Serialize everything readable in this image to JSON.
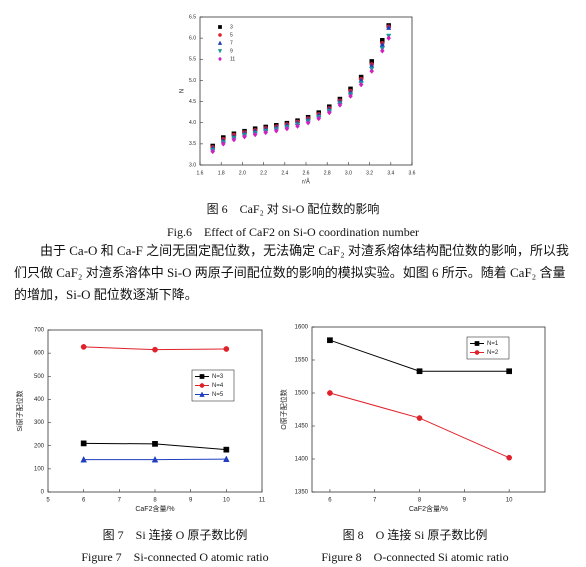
{
  "chart_data": [
    {
      "type": "scatter",
      "xlabel": "r/Å",
      "ylabel": "N",
      "caption": "图 6　CaF₂ 对 Si-O 配位数的影响",
      "caption_en": "Fig.6　Effect of CaF2 on Si-O coordination number",
      "x": [
        1.72,
        1.82,
        1.92,
        2.02,
        2.12,
        2.22,
        2.32,
        2.42,
        2.52,
        2.62,
        2.72,
        2.82,
        2.92,
        3.02,
        3.12,
        3.22,
        3.32,
        3.38
      ],
      "xlim": [
        1.6,
        3.6
      ],
      "ylim": [
        3.0,
        6.5
      ],
      "xticks": [
        1.6,
        1.8,
        {
          "value": 2,
          "label": "2.0"
        },
        2.2,
        2.4,
        2.6,
        2.8,
        {
          "value": 3,
          "label": "3.0"
        },
        3.2,
        3.4,
        3.6
      ],
      "yticks": [
        {
          "value": 3,
          "label": "3.0"
        },
        3.5,
        {
          "value": 4,
          "label": "4.0"
        },
        4.5,
        {
          "value": 5,
          "label": "5.0"
        },
        5.5,
        {
          "value": 6,
          "label": "6.0"
        },
        6.5
      ],
      "legend": "top-left",
      "series": [
        {
          "name": "3",
          "color": "#000000",
          "marker": "square",
          "values": [
            3.45,
            3.65,
            3.74,
            3.8,
            3.86,
            3.9,
            3.94,
            3.99,
            4.05,
            4.13,
            4.24,
            4.38,
            4.56,
            4.8,
            5.08,
            5.45,
            5.95,
            6.3
          ]
        },
        {
          "name": "5",
          "color": "#e0202a",
          "marker": "circle",
          "values": [
            3.42,
            3.61,
            3.71,
            3.77,
            3.82,
            3.87,
            3.91,
            3.96,
            4.02,
            4.1,
            4.2,
            4.34,
            4.52,
            4.75,
            5.03,
            5.38,
            5.88,
            6.27
          ]
        },
        {
          "name": "7",
          "color": "#1f3fc0",
          "marker": "triangle",
          "values": [
            3.4,
            3.58,
            3.68,
            3.75,
            3.8,
            3.85,
            3.89,
            3.94,
            4.0,
            4.08,
            4.18,
            4.32,
            4.5,
            4.72,
            5.0,
            5.35,
            5.85,
            6.25
          ]
        },
        {
          "name": "9",
          "color": "#1a9a9a",
          "marker": "down-triangle",
          "values": [
            3.35,
            3.53,
            3.63,
            3.7,
            3.75,
            3.8,
            3.84,
            3.89,
            3.95,
            4.03,
            4.13,
            4.27,
            4.45,
            4.66,
            4.93,
            5.27,
            5.75,
            6.05
          ]
        },
        {
          "name": "11",
          "color": "#d020c0",
          "marker": "diamond",
          "values": [
            3.32,
            3.5,
            3.6,
            3.67,
            3.72,
            3.77,
            3.81,
            3.86,
            3.92,
            4.0,
            4.1,
            4.24,
            4.42,
            4.63,
            4.9,
            5.22,
            5.7,
            6.0
          ]
        }
      ]
    },
    {
      "type": "line",
      "xlabel": "CaF2含量/%",
      "ylabel": "Si原子配位数",
      "caption": "图 7　Si 连接 O 原子数比例",
      "caption_en": "Figure 7　Si-connected O atomic ratio",
      "x": [
        6,
        8,
        10
      ],
      "xlim": [
        5,
        11
      ],
      "ylim": [
        0,
        700
      ],
      "xticks": [
        5,
        6,
        7,
        8,
        9,
        10,
        11
      ],
      "yticks": [
        0,
        100,
        200,
        300,
        400,
        500,
        600,
        700
      ],
      "legend": "right",
      "series": [
        {
          "name": "N=3",
          "color": "#000000",
          "marker": "square",
          "values": [
            210,
            208,
            183
          ]
        },
        {
          "name": "N=4",
          "color": "#e0202a",
          "marker": "circle",
          "values": [
            627,
            615,
            618
          ]
        },
        {
          "name": "N=5",
          "color": "#1f3fc0",
          "marker": "triangle",
          "values": [
            140,
            140,
            142
          ]
        }
      ]
    },
    {
      "type": "line",
      "xlabel": "CaF2含量/%",
      "ylabel": "O原子配位数",
      "caption": "图 8　O 连接 Si 原子数比例",
      "caption_en": "Figure 8　O-connected Si atomic ratio",
      "x": [
        6,
        8,
        10
      ],
      "xlim": [
        5.6,
        10.8
      ],
      "ylim": [
        1350,
        1600
      ],
      "xticks": [
        6,
        7,
        8,
        9,
        10
      ],
      "yticks": [
        1350,
        1400,
        1450,
        1500,
        1550,
        1600
      ],
      "legend": "top-right",
      "series": [
        {
          "name": "N=1",
          "color": "#000000",
          "marker": "square",
          "values": [
            1580,
            1533,
            1533
          ]
        },
        {
          "name": "N=2",
          "color": "#e0202a",
          "marker": "circle",
          "values": [
            1500,
            1462,
            1402
          ]
        }
      ]
    }
  ],
  "body": "由于 Ca-O 和 Ca-F 之间无固定配位数，无法确定 CaF₂ 对渣系熔体结构配位数的影响，所以我们只做 CaF₂ 对渣系溶体中 Si-O 两原子间配位数的影响的模拟实验。如图 6 所示。随着 CaF₂ 含量的增加，Si-O 配位数逐渐下降。"
}
